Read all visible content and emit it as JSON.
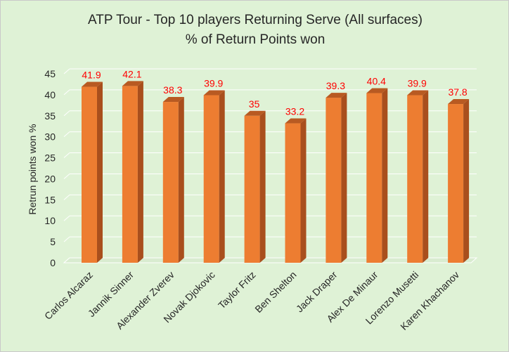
{
  "colors": {
    "background": "#dff2d6",
    "bar_front": "#ed7d31",
    "bar_side": "#a94f1d",
    "bar_top": "#b85a22",
    "data_label": "#ff0000",
    "gridline": "#ffffff"
  },
  "chart_data": {
    "type": "bar",
    "title": "ATP Tour - Top 10 players Returning Serve (All surfaces)",
    "subtitle": "% of Return Points won",
    "xlabel": "",
    "ylabel": "Retrun points won %",
    "ylim": [
      0,
      45
    ],
    "yticks": [
      0,
      5,
      10,
      15,
      20,
      25,
      30,
      35,
      40,
      45
    ],
    "grid": true,
    "style": "3d-column",
    "categories": [
      "Carlos Alcaraz",
      "Jannik Sinner",
      "Alexander Zverev",
      "Novak Djokovic",
      "Taylor Fritz",
      "Ben Shelton",
      "Jack Draper",
      "Alex De Minaur",
      "Lorenzo Musetti",
      "Karen Khachanov"
    ],
    "values": [
      41.9,
      42.1,
      38.3,
      39.9,
      35,
      33.2,
      39.3,
      40.4,
      39.9,
      37.8
    ],
    "data_labels": [
      "41.9",
      "42.1",
      "38.3",
      "39.9",
      "35",
      "33.2",
      "39.3",
      "40.4",
      "39.9",
      "37.8"
    ]
  }
}
